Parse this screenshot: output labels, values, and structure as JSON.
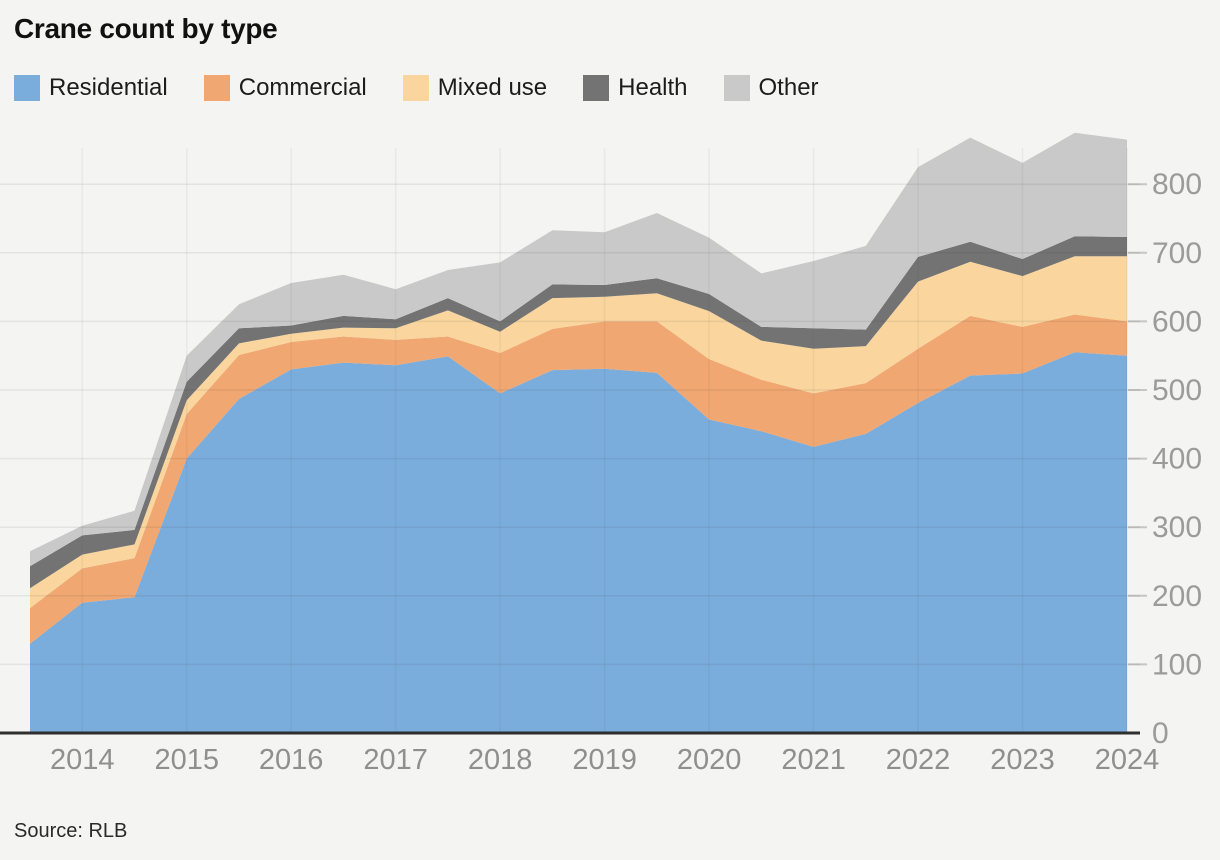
{
  "title": "Crane count by type",
  "source": "Source: RLB",
  "legend": {
    "items": [
      {
        "label": "Residential",
        "color": "#7aacdc"
      },
      {
        "label": "Commercial",
        "color": "#f0a771"
      },
      {
        "label": "Mixed use",
        "color": "#fad69e"
      },
      {
        "label": "Health",
        "color": "#737373"
      },
      {
        "label": "Other",
        "color": "#c9c9c9"
      }
    ]
  },
  "chart_data": {
    "type": "area",
    "stacked": true,
    "title": "Crane count by type",
    "xlabel": "",
    "ylabel": "",
    "x": [
      2013.5,
      2014,
      2014.5,
      2015,
      2015.5,
      2016,
      2016.5,
      2017,
      2017.5,
      2018,
      2018.5,
      2019,
      2019.5,
      2020,
      2020.5,
      2021,
      2021.5,
      2022,
      2022.5,
      2023,
      2023.5,
      2024
    ],
    "series": [
      {
        "name": "Residential",
        "color": "#7aacdc",
        "values": [
          130,
          190,
          198,
          400,
          487,
          530,
          540,
          536,
          549,
          495,
          529,
          531,
          525,
          457,
          440,
          417,
          436,
          481,
          521,
          524,
          555,
          550
        ]
      },
      {
        "name": "Commercial",
        "color": "#f0a771",
        "values": [
          52,
          50,
          57,
          65,
          64,
          40,
          38,
          37,
          29,
          59,
          60,
          69,
          75,
          88,
          75,
          78,
          74,
          79,
          87,
          68,
          55,
          50
        ]
      },
      {
        "name": "Mixed use",
        "color": "#fad69e",
        "values": [
          29,
          20,
          20,
          20,
          17,
          12,
          13,
          17,
          38,
          31,
          45,
          36,
          41,
          70,
          57,
          65,
          54,
          98,
          79,
          74,
          85,
          95
        ]
      },
      {
        "name": "Health",
        "color": "#737373",
        "values": [
          32,
          28,
          21,
          27,
          22,
          12,
          17,
          13,
          18,
          15,
          20,
          17,
          22,
          25,
          20,
          30,
          24,
          36,
          29,
          25,
          29,
          28
        ]
      },
      {
        "name": "Other",
        "color": "#c9c9c9",
        "values": [
          22,
          14,
          28,
          38,
          35,
          62,
          60,
          44,
          41,
          86,
          79,
          77,
          95,
          82,
          78,
          98,
          122,
          131,
          152,
          140,
          151,
          142
        ]
      }
    ],
    "stack_totals": [
      265,
      302,
      324,
      550,
      625,
      656,
      668,
      647,
      675,
      686,
      733,
      730,
      758,
      722,
      670,
      688,
      710,
      825,
      868,
      831,
      875,
      865
    ],
    "xticks": [
      "2014",
      "2015",
      "2016",
      "2017",
      "2018",
      "2019",
      "2020",
      "2021",
      "2022",
      "2023",
      "2024"
    ],
    "yticks": [
      0,
      100,
      200,
      300,
      400,
      500,
      600,
      700,
      800
    ],
    "ylim": [
      0,
      880
    ],
    "xlim": [
      2013.5,
      2024
    ],
    "grid": "horizontal",
    "legend_position": "top-left",
    "y_axis_side": "right"
  }
}
